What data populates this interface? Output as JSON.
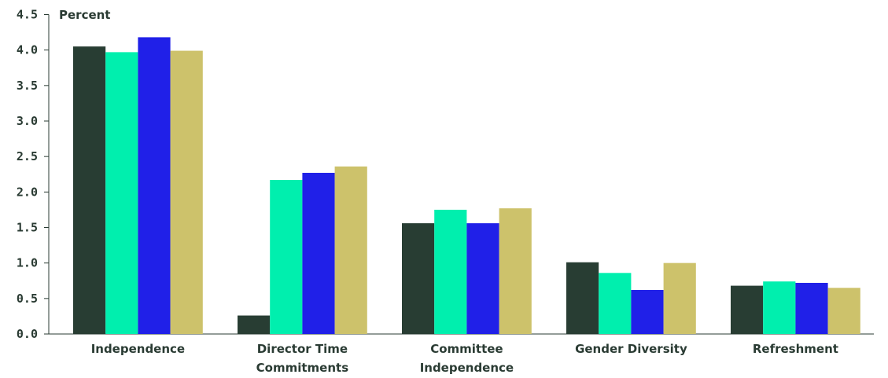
{
  "chart_data": {
    "type": "bar",
    "ylabel": "Percent",
    "ylim": [
      0,
      4.5
    ],
    "yticks": [
      "0.0",
      "0.5",
      "1.0",
      "1.5",
      "2.0",
      "2.5",
      "3.0",
      "3.5",
      "4.0",
      "4.5"
    ],
    "categories": [
      [
        "Independence"
      ],
      [
        "Director Time",
        "Commitments"
      ],
      [
        "Committee",
        "Independence"
      ],
      [
        "Gender Diversity"
      ],
      [
        "Refreshment"
      ]
    ],
    "series": [
      {
        "color": "#283d33",
        "values": [
          4.05,
          0.26,
          1.56,
          1.01,
          0.68
        ]
      },
      {
        "color": "#00efae",
        "values": [
          3.97,
          2.17,
          1.75,
          0.86,
          0.74
        ]
      },
      {
        "color": "#2020e8",
        "values": [
          4.18,
          2.27,
          1.56,
          0.62,
          0.72
        ]
      },
      {
        "color": "#cdc26b",
        "values": [
          3.99,
          2.36,
          1.77,
          1.0,
          0.65
        ]
      }
    ],
    "grid": false,
    "legend": "none"
  }
}
